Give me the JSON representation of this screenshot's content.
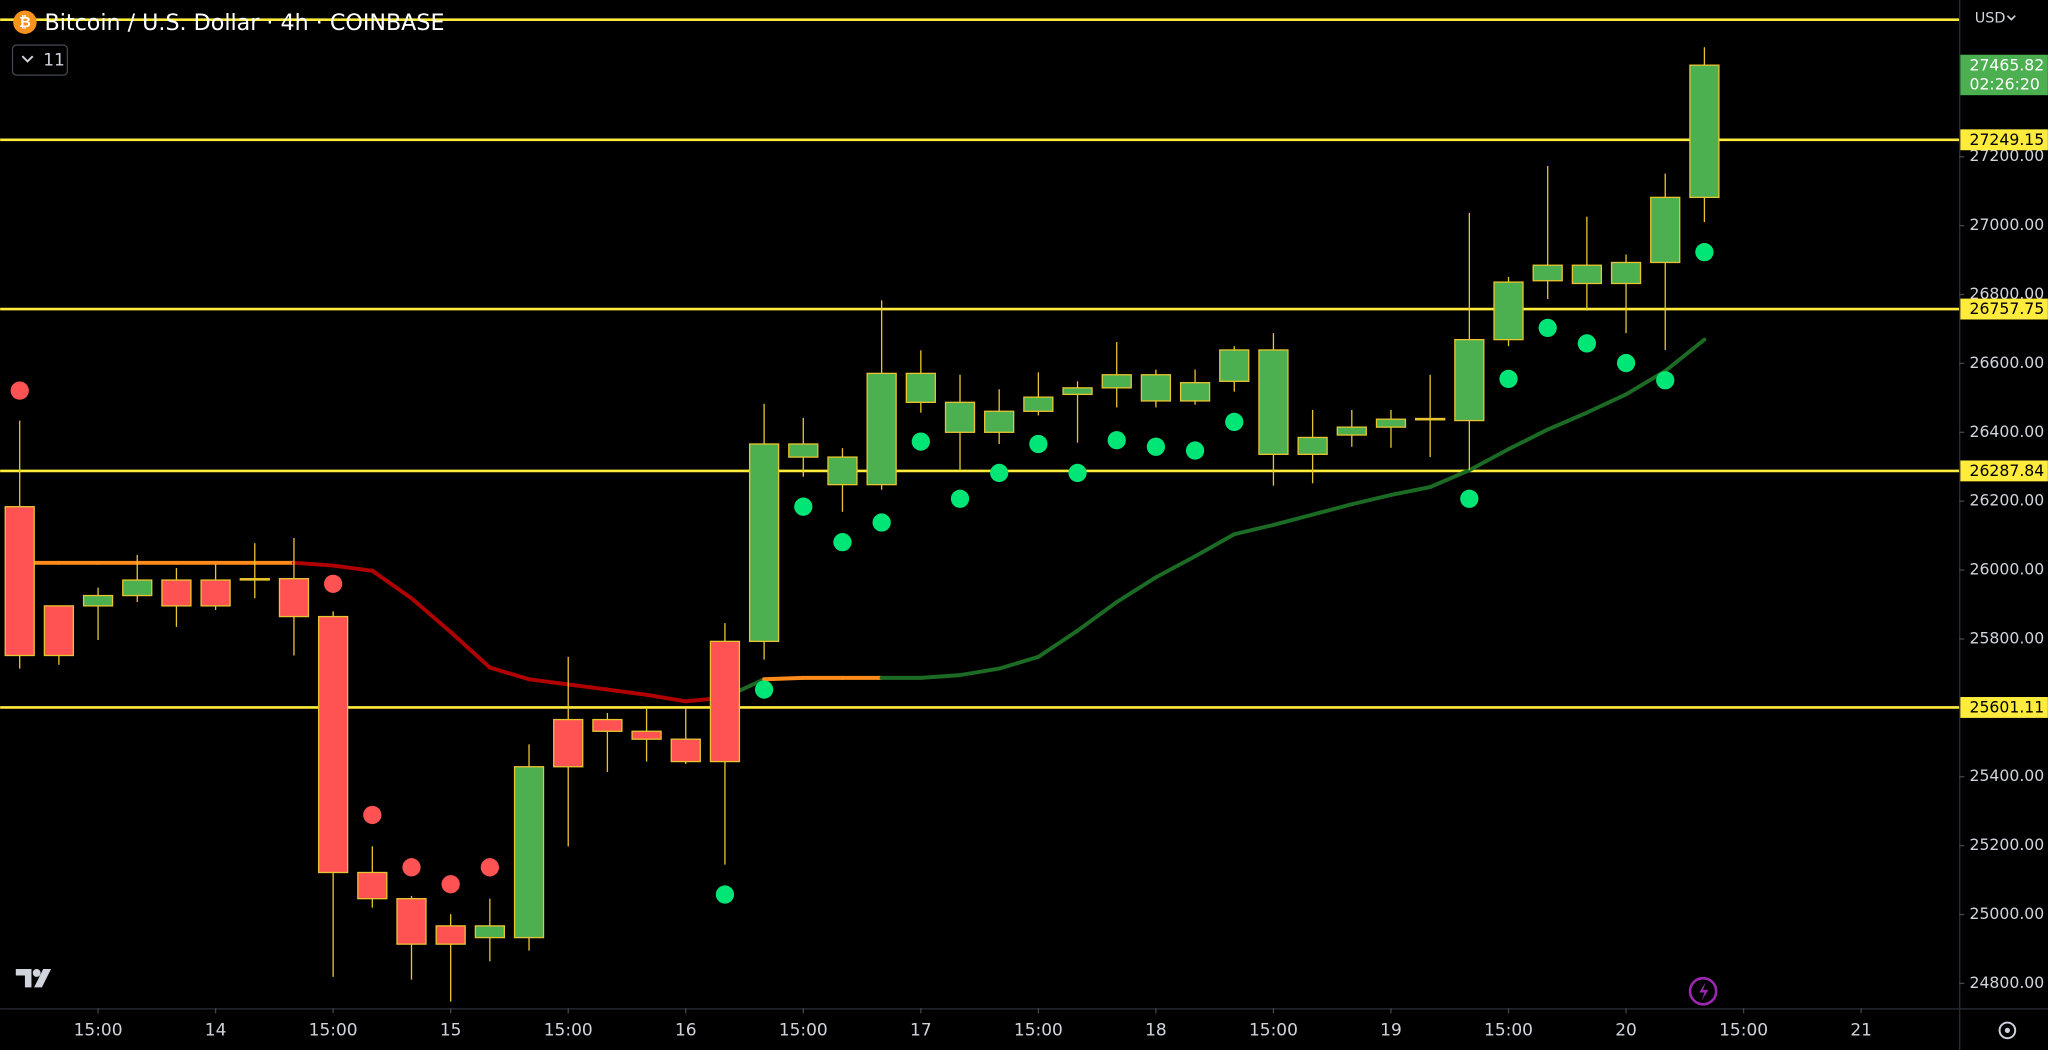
{
  "chart_data": {
    "type": "candlestick",
    "title": "Bitcoin / U.S. Dollar · 4h · COINBASE",
    "currency": "USD",
    "indicators": 11,
    "countdown": "02:26:20",
    "up_color": "#4caf50",
    "down_color": "#ff5252",
    "border_color": "#e8c530",
    "xlim": [
      -0.5,
      49.5
    ],
    "xticks": [
      {
        "value": 2,
        "label": "15:00"
      },
      {
        "value": 5,
        "label": "14"
      },
      {
        "value": 8,
        "label": "15:00"
      },
      {
        "value": 11,
        "label": "15"
      },
      {
        "value": 14,
        "label": "15:00"
      },
      {
        "value": 17,
        "label": "16"
      },
      {
        "value": 20,
        "label": "15:00"
      },
      {
        "value": 23,
        "label": "17"
      },
      {
        "value": 26,
        "label": "15:00"
      },
      {
        "value": 29,
        "label": "18"
      },
      {
        "value": 32,
        "label": "15:00"
      },
      {
        "value": 35,
        "label": "19"
      },
      {
        "value": 38,
        "label": "15:00"
      },
      {
        "value": 41,
        "label": "20"
      },
      {
        "value": 44,
        "label": "15:00"
      },
      {
        "value": 47,
        "label": "21"
      }
    ],
    "ylim": [
      24728,
      27655
    ],
    "yticks": [
      {
        "value": 24800,
        "label": "24800.00"
      },
      {
        "value": 25000,
        "label": "25000.00"
      },
      {
        "value": 25200,
        "label": "25200.00"
      },
      {
        "value": 25400,
        "label": "25400.00"
      },
      {
        "value": 25600,
        "label": "25600.00"
      },
      {
        "value": 25800,
        "label": "25800.00"
      },
      {
        "value": 26000,
        "label": "26000.00"
      },
      {
        "value": 26200,
        "label": "26200.00"
      },
      {
        "value": 26400,
        "label": "26400.00"
      },
      {
        "value": 26600,
        "label": "26600.00"
      },
      {
        "value": 26800,
        "label": "26800.00"
      },
      {
        "value": 27000,
        "label": "27000.00"
      },
      {
        "value": 27200,
        "label": "27200.00"
      }
    ],
    "open": [
      26184,
      25896,
      25896,
      25926,
      25971,
      25971,
      25975,
      25975,
      25865,
      25122,
      25046,
      24967,
      24933,
      24933,
      25566,
      25566,
      25532,
      25509,
      25793,
      25793,
      26328,
      26248,
      26248,
      26487,
      26400,
      26400,
      26461,
      26510,
      26529,
      26491,
      26491,
      26548,
      26336,
      26336,
      26392,
      26415,
      26438,
      26434,
      26669,
      26840,
      26832,
      26832,
      26893,
      27082
    ],
    "high": [
      26434,
      25896,
      25949,
      26044,
      26006,
      26017,
      26078,
      26093,
      25880,
      25198,
      25054,
      25001,
      25046,
      25494,
      25748,
      25585,
      25600,
      25600,
      25846,
      26483,
      26442,
      26354,
      26783,
      26638,
      26567,
      26525,
      26574,
      26548,
      26662,
      26582,
      26582,
      26650,
      26688,
      26465,
      26465,
      26465,
      26567,
      27037,
      26851,
      27173,
      27026,
      26916,
      27151,
      27518
    ],
    "low": [
      25714,
      25725,
      25797,
      25907,
      25835,
      25884,
      25918,
      25752,
      24819,
      25020,
      24811,
      24747,
      24864,
      24895,
      25198,
      25414,
      25444,
      25437,
      25145,
      25740,
      26271,
      26169,
      26233,
      26457,
      26290,
      26366,
      26449,
      26370,
      26472,
      26472,
      26480,
      26518,
      26245,
      26252,
      26358,
      26355,
      26328,
      26290,
      26650,
      26787,
      26753,
      26688,
      26639,
      27010
    ],
    "close": [
      25752,
      25752,
      25926,
      25971,
      25896,
      25896,
      25975,
      25865,
      25122,
      25046,
      24914,
      24914,
      24967,
      25429,
      25429,
      25532,
      25509,
      25444,
      25444,
      26366,
      26366,
      26328,
      26571,
      26571,
      26487,
      26461,
      26502,
      26529,
      26567,
      26567,
      26544,
      26639,
      26639,
      26385,
      26415,
      26438,
      26440,
      26669,
      26836,
      26885,
      26885,
      26893,
      27082,
      27465.82
    ],
    "levels": [
      27249.15,
      26757.75,
      26287.84,
      25601.11
    ],
    "top_level": 27598,
    "level_color": "#ffeb3b",
    "signals": {
      "x": [
        0,
        8,
        9,
        10,
        11,
        12,
        18,
        19,
        20,
        21,
        22,
        23,
        24,
        25,
        26,
        27,
        28,
        29,
        30,
        31,
        37,
        38,
        39,
        40,
        41,
        42,
        43
      ],
      "values": [
        26521,
        25960,
        25289,
        25137,
        25088,
        25137,
        25058,
        25653,
        26184,
        26081,
        26138,
        26373,
        26207,
        26282,
        26366,
        26282,
        26377,
        26358,
        26347,
        26430,
        26207,
        26555,
        26703,
        26658,
        26601,
        26551,
        26923
      ],
      "colors": [
        "#ff5252",
        "#ff5252",
        "#ff5252",
        "#ff5252",
        "#ff5252",
        "#ff5252",
        "#00e676",
        "#00e676",
        "#00e676",
        "#00e676",
        "#00e676",
        "#00e676",
        "#00e676",
        "#00e676",
        "#00e676",
        "#00e676",
        "#00e676",
        "#00e676",
        "#00e676",
        "#00e676",
        "#00e676",
        "#00e676",
        "#00e676",
        "#00e676",
        "#00e676",
        "#00e676",
        "#00e676"
      ]
    },
    "ma": {
      "values": [
        26021,
        26021,
        26021,
        26021,
        26021,
        26021,
        26021,
        26021,
        26013,
        25998,
        25918,
        25820,
        25717,
        25683,
        25668,
        25653,
        25638,
        25619,
        25630,
        25683,
        25687,
        25687,
        25687,
        25687,
        25695,
        25714,
        25748,
        25824,
        25907,
        25979,
        26040,
        26104,
        26131,
        26161,
        26191,
        26218,
        26241,
        26290,
        26351,
        26408,
        26457,
        26510,
        26578,
        26669
      ],
      "colors": [
        "#ff8c1a",
        "#ff8c1a",
        "#ff8c1a",
        "#ff8c1a",
        "#ff8c1a",
        "#ff8c1a",
        "#ff8c1a",
        "#b00000",
        "#b00000",
        "#b00000",
        "#b00000",
        "#b00000",
        "#b00000",
        "#b00000",
        "#b00000",
        "#b00000",
        "#b00000",
        "#b00000",
        "#1b6b24",
        "#ff8c1a",
        "#ff8c1a",
        "#ff8c1a",
        "#1b6b24",
        "#1b6b24",
        "#1b6b24",
        "#1b6b24",
        "#1b6b24",
        "#1b6b24",
        "#1b6b24",
        "#1b6b24",
        "#1b6b24",
        "#1b6b24",
        "#1b6b24",
        "#1b6b24",
        "#1b6b24",
        "#1b6b24",
        "#1b6b24",
        "#1b6b24",
        "#1b6b24",
        "#1b6b24",
        "#1b6b24",
        "#1b6b24",
        "#1b6b24",
        "#1b6b24"
      ]
    }
  }
}
